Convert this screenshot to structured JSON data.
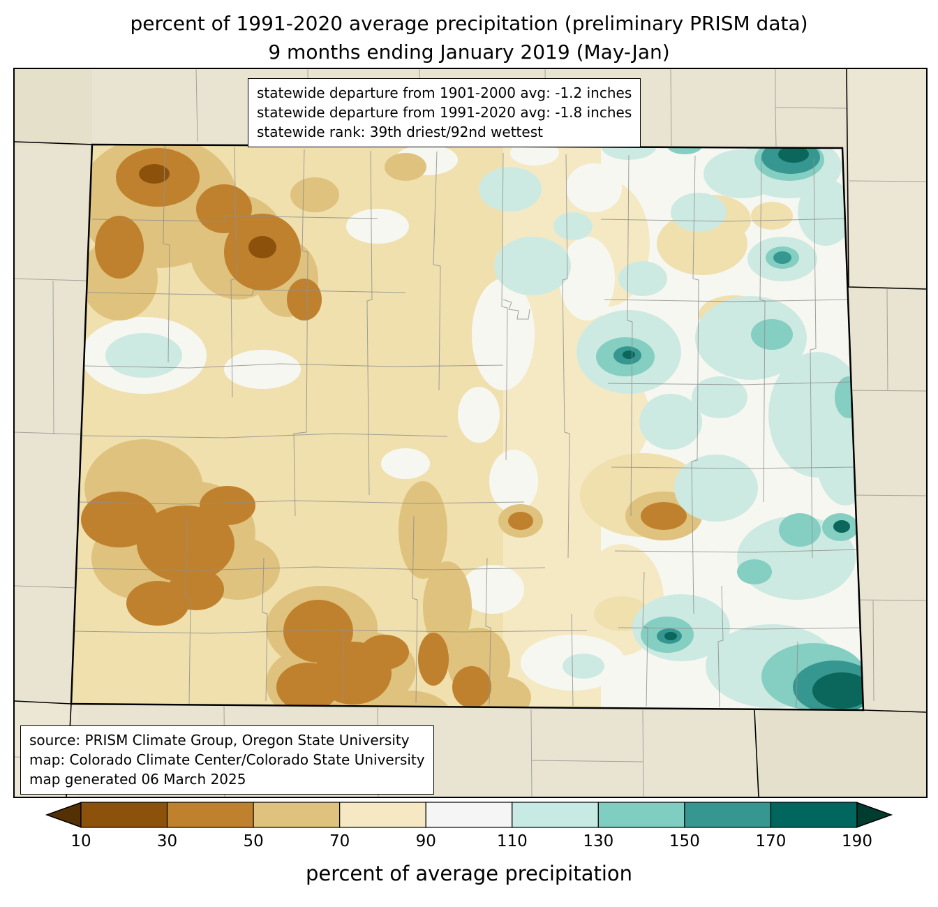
{
  "title": {
    "line1": "percent of 1991-2020 average precipitation (preliminary PRISM data)",
    "line2": "9 months ending January 2019 (May-Jan)"
  },
  "stats_box": {
    "line1": "statewide departure from 1901-2000 avg: -1.2 inches",
    "line2": "statewide departure from 1991-2020 avg: -1.8 inches",
    "line3": "statewide rank: 39th driest/92nd wettest"
  },
  "source_box": {
    "line1": "source: PRISM Climate Group, Oregon State University",
    "line2": "map: Colorado Climate Center/Colorado State University",
    "line3": "map generated 06 March 2025"
  },
  "map": {
    "region": "Colorado",
    "background_color": "#e9e4d1",
    "state_border_color": "#000000",
    "county_line_color": "#8f8f8f"
  },
  "chart_data": {
    "type": "heatmap",
    "title": "percent of 1991-2020 average precipitation (preliminary PRISM data) — 9 months ending January 2019 (May-Jan)",
    "legend_position": "bottom",
    "colorbar_label": "percent of average precipitation",
    "ticks": [
      10,
      30,
      50,
      70,
      90,
      110,
      130,
      150,
      170,
      190
    ],
    "bins": [
      "<10",
      "10-30",
      "30-50",
      "50-70",
      "70-90",
      "90-110",
      "110-130",
      "130-150",
      "150-170",
      "170-190",
      ">190"
    ],
    "bin_colors": [
      "#543005",
      "#8c510a",
      "#bf812d",
      "#dfc27d",
      "#f6e8c3",
      "#f5f5f5",
      "#c7eae5",
      "#80cdc1",
      "#35978f",
      "#01665e",
      "#003c30"
    ]
  },
  "colorbar": {
    "label": "percent of average precipitation",
    "ticks": [
      "10",
      "30",
      "50",
      "70",
      "90",
      "110",
      "130",
      "150",
      "170",
      "190"
    ],
    "segment_colors": [
      "#8c510a",
      "#bf812d",
      "#dfc27d",
      "#f6e8c3",
      "#f5f5f5",
      "#c7eae5",
      "#80cdc1",
      "#35978f",
      "#01665e"
    ],
    "left_arrow_color": "#543005",
    "right_arrow_color": "#003c30",
    "outline_color": "#000000"
  }
}
